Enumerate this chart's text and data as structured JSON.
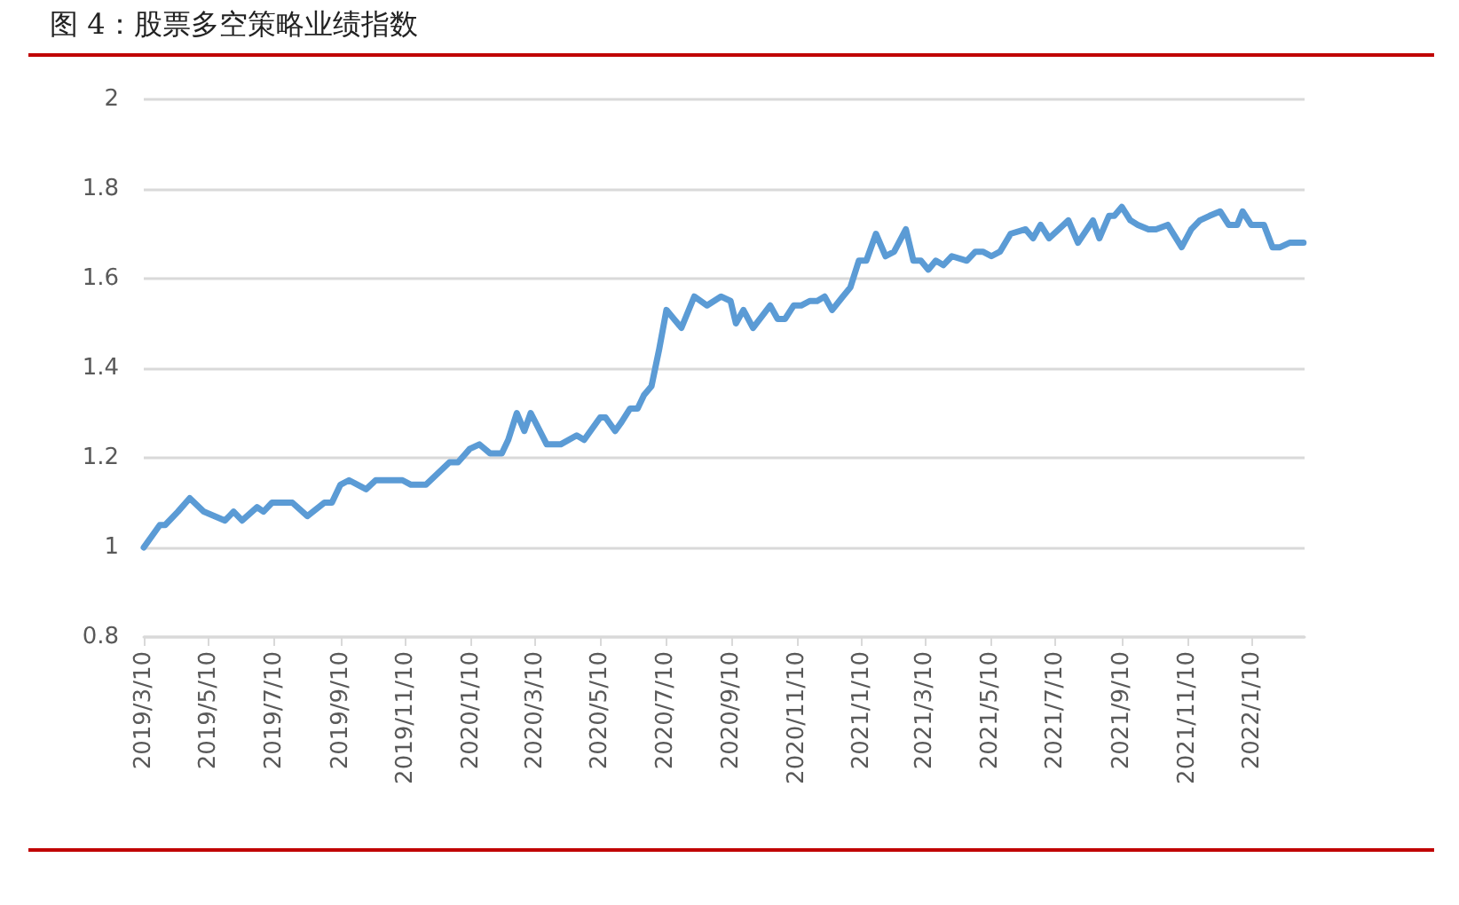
{
  "chart_data": {
    "type": "line",
    "title": "图 4：股票多空策略业绩指数",
    "x": [
      "2019-03-10",
      "2019-03-25",
      "2019-03-30",
      "2019-04-11",
      "2019-04-22",
      "2019-05-05",
      "2019-05-25",
      "2019-06-02",
      "2019-06-10",
      "2019-06-24",
      "2019-06-30",
      "2019-07-08",
      "2019-07-27",
      "2019-08-10",
      "2019-08-26",
      "2019-09-02",
      "2019-09-10",
      "2019-09-18",
      "2019-10-04",
      "2019-10-13",
      "2019-11-07",
      "2019-11-15",
      "2019-11-29",
      "2019-12-21",
      "2019-12-29",
      "2020-01-09",
      "2020-01-18",
      "2020-01-28",
      "2020-02-08",
      "2020-02-14",
      "2020-02-22",
      "2020-02-29",
      "2020-03-06",
      "2020-03-21",
      "2020-04-03",
      "2020-04-18",
      "2020-04-25",
      "2020-05-10",
      "2020-05-15",
      "2020-05-24",
      "2020-05-30",
      "2020-06-07",
      "2020-06-14",
      "2020-06-20",
      "2020-06-27",
      "2020-07-04",
      "2020-07-11",
      "2020-07-18",
      "2020-07-25",
      "2020-08-06",
      "2020-08-18",
      "2020-08-31",
      "2020-09-09",
      "2020-09-14",
      "2020-09-21",
      "2020-09-30",
      "2020-10-16",
      "2020-10-23",
      "2020-10-30",
      "2020-11-07",
      "2020-11-14",
      "2020-11-22",
      "2020-11-29",
      "2020-12-06",
      "2020-12-13",
      "2020-12-23",
      "2020-12-30",
      "2021-01-07",
      "2021-01-14",
      "2021-01-23",
      "2021-02-01",
      "2021-02-09",
      "2021-02-20",
      "2021-02-27",
      "2021-03-06",
      "2021-03-13",
      "2021-03-20",
      "2021-03-27",
      "2021-04-04",
      "2021-04-18",
      "2021-04-26",
      "2021-05-03",
      "2021-05-11",
      "2021-05-19",
      "2021-05-29",
      "2021-06-12",
      "2021-06-19",
      "2021-06-26",
      "2021-07-04",
      "2021-07-13",
      "2021-07-22",
      "2021-07-31",
      "2021-08-14",
      "2021-08-20",
      "2021-08-29",
      "2021-09-03",
      "2021-09-10",
      "2021-09-18",
      "2021-09-25",
      "2021-10-05",
      "2021-10-12",
      "2021-10-23",
      "2021-11-05",
      "2021-11-14",
      "2021-11-22",
      "2021-12-01",
      "2021-12-11",
      "2021-12-19",
      "2021-12-27",
      "2022-01-01",
      "2022-01-09",
      "2022-01-21",
      "2022-01-29",
      "2022-02-05",
      "2022-02-14",
      "2022-02-20",
      "2022-02-27"
    ],
    "series": [
      {
        "color": "#5b9bd5",
        "values": [
          1.0,
          1.05,
          1.05,
          1.08,
          1.11,
          1.08,
          1.06,
          1.08,
          1.06,
          1.09,
          1.08,
          1.1,
          1.1,
          1.07,
          1.1,
          1.1,
          1.14,
          1.15,
          1.13,
          1.15,
          1.15,
          1.14,
          1.14,
          1.19,
          1.19,
          1.22,
          1.23,
          1.21,
          1.21,
          1.24,
          1.3,
          1.26,
          1.3,
          1.23,
          1.23,
          1.25,
          1.24,
          1.29,
          1.29,
          1.26,
          1.28,
          1.31,
          1.31,
          1.34,
          1.36,
          1.44,
          1.53,
          1.51,
          1.49,
          1.56,
          1.54,
          1.56,
          1.55,
          1.5,
          1.53,
          1.49,
          1.54,
          1.51,
          1.51,
          1.54,
          1.54,
          1.55,
          1.55,
          1.56,
          1.53,
          1.56,
          1.58,
          1.64,
          1.64,
          1.7,
          1.65,
          1.66,
          1.71,
          1.64,
          1.64,
          1.62,
          1.64,
          1.63,
          1.65,
          1.64,
          1.66,
          1.66,
          1.65,
          1.66,
          1.7,
          1.71,
          1.69,
          1.72,
          1.69,
          1.71,
          1.73,
          1.68,
          1.73,
          1.69,
          1.74,
          1.74,
          1.76,
          1.73,
          1.72,
          1.71,
          1.71,
          1.72,
          1.67,
          1.71,
          1.73,
          1.74,
          1.75,
          1.72,
          1.72,
          1.75,
          1.72,
          1.72,
          1.67,
          1.67,
          1.68,
          1.68,
          1.68
        ]
      }
    ],
    "xlim": [
      "2019-03-10",
      "2022-02-28"
    ],
    "xticks": [
      {
        "value": "2019-03-10",
        "label": "2019/3/10"
      },
      {
        "value": "2019-05-10",
        "label": "2019/5/10"
      },
      {
        "value": "2019-07-10",
        "label": "2019/7/10"
      },
      {
        "value": "2019-09-10",
        "label": "2019/9/10"
      },
      {
        "value": "2019-11-10",
        "label": "2019/11/10"
      },
      {
        "value": "2020-01-10",
        "label": "2020/1/10"
      },
      {
        "value": "2020-03-10",
        "label": "2020/3/10"
      },
      {
        "value": "2020-05-10",
        "label": "2020/5/10"
      },
      {
        "value": "2020-07-10",
        "label": "2020/7/10"
      },
      {
        "value": "2020-09-10",
        "label": "2020/9/10"
      },
      {
        "value": "2020-11-10",
        "label": "2020/11/10"
      },
      {
        "value": "2021-01-10",
        "label": "2021/1/10"
      },
      {
        "value": "2021-03-10",
        "label": "2021/3/10"
      },
      {
        "value": "2021-05-10",
        "label": "2021/5/10"
      },
      {
        "value": "2021-07-10",
        "label": "2021/7/10"
      },
      {
        "value": "2021-09-10",
        "label": "2021/9/10"
      },
      {
        "value": "2021-11-10",
        "label": "2021/11/10"
      },
      {
        "value": "2022-01-10",
        "label": "2022/1/10"
      }
    ],
    "ylim": [
      0.8,
      2
    ],
    "yticks": [
      0.8,
      1,
      1.2,
      1.4,
      1.6,
      1.8,
      2
    ],
    "grid": "y",
    "marker": "none",
    "line_style": "solid"
  }
}
